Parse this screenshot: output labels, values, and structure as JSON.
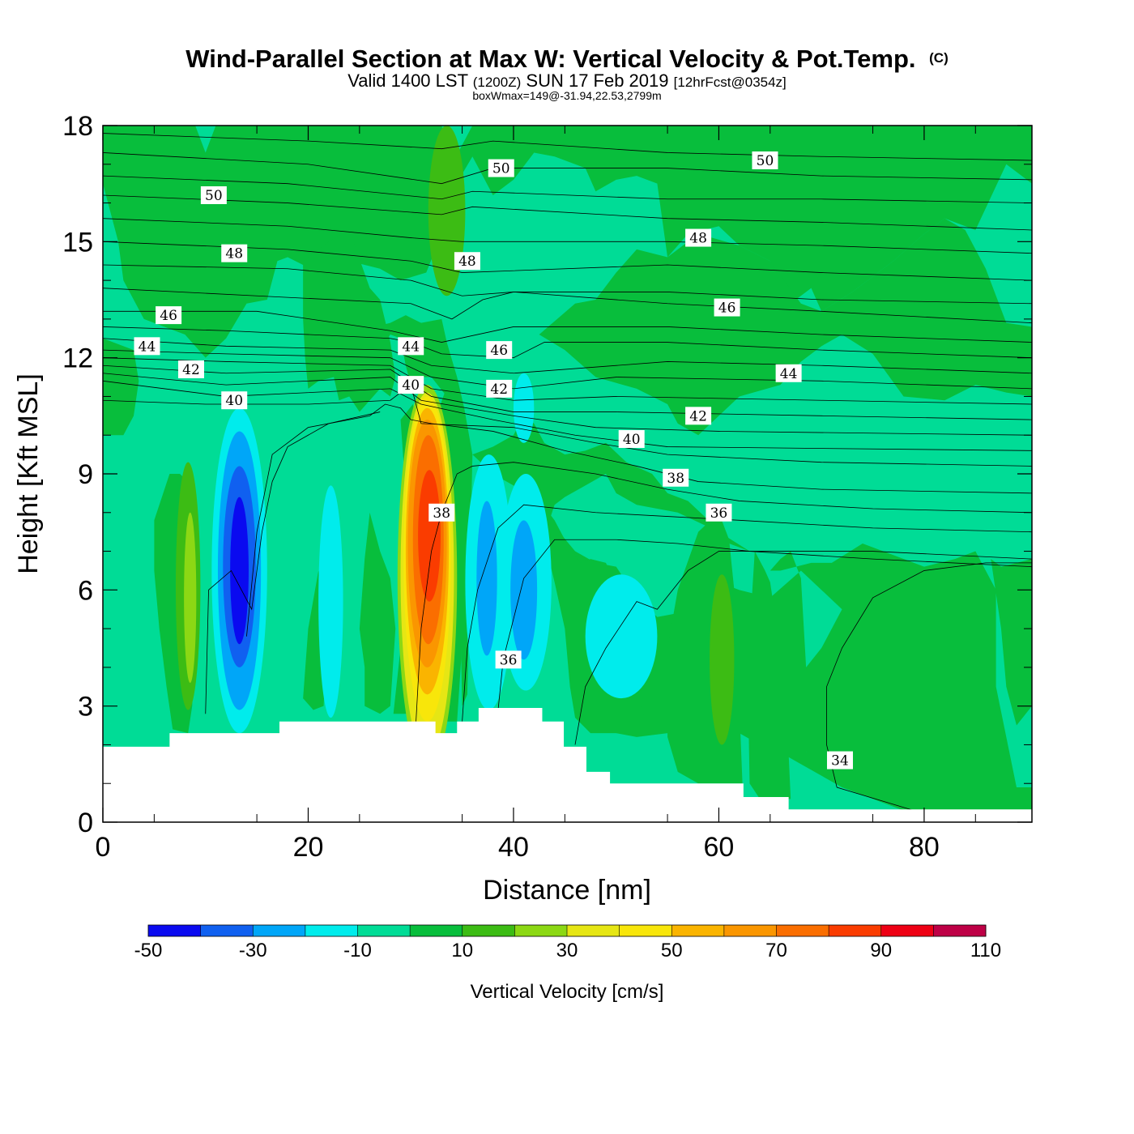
{
  "chart_data": {
    "type": "contour",
    "title": "Wind-Parallel Section at Max W: Vertical Velocity & Pot.Temp.",
    "copyright": "(C)",
    "subtitle_parts": [
      "Valid 1400 LST",
      "(1200Z)",
      "SUN 17 Feb 2019",
      "[12hrFcst@0354z]"
    ],
    "info_line": "boxWmax=149@-31.94,22.53,2799m",
    "xlabel": "Distance [nm]",
    "ylabel": "Height [Kft MSL]",
    "xlim": [
      0,
      90.5
    ],
    "ylim": [
      0,
      18
    ],
    "x_ticks": [
      0,
      20,
      40,
      60,
      80
    ],
    "y_ticks": [
      0,
      3,
      6,
      9,
      12,
      15,
      18
    ],
    "colorbar": {
      "title": "Vertical Velocity [cm/s]",
      "levels": [
        -50,
        -40,
        -30,
        -20,
        -10,
        0,
        10,
        20,
        30,
        40,
        50,
        60,
        70,
        80,
        90,
        100,
        110
      ],
      "tick_labels": [
        "-50",
        "-30",
        "-10",
        "10",
        "30",
        "50",
        "70",
        "90",
        "110"
      ],
      "colors": [
        "#0a0af0",
        "#1060f0",
        "#00a6f8",
        "#00ecec",
        "#00dc96",
        "#08be3c",
        "#3cbc14",
        "#8cd814",
        "#e6e614",
        "#f8e60a",
        "#fab400",
        "#fa9600",
        "#fa6e00",
        "#fa3c00",
        "#ee0014",
        "#be0046"
      ]
    },
    "background_band": "#00dc96",
    "wind_w_features": [
      {
        "name": "updraft-core",
        "x_nm": 31.5,
        "height_kft": 7.5,
        "w_max_cm_s": 100
      },
      {
        "name": "downdraft-core",
        "x_nm": 13.2,
        "height_kft": 6.5,
        "w_min_cm_s": -50
      },
      {
        "name": "downdraft-secondary",
        "x_nm": 37.5,
        "height_kft": 6.8,
        "w_min_cm_s": -30
      },
      {
        "name": "downdraft-tertiary",
        "x_nm": 41,
        "height_kft": 6,
        "w_min_cm_s": -30
      },
      {
        "name": "updraft-west",
        "x_nm": 8.5,
        "height_kft": 6,
        "w_max_cm_s": 30
      },
      {
        "name": "updraft-east",
        "x_nm": 60,
        "height_kft": 4,
        "w_max_cm_s": 20
      }
    ],
    "terrain_kft": [
      {
        "x": 0,
        "h": 1.95
      },
      {
        "x": 6.5,
        "h": 2.3
      },
      {
        "x": 17.2,
        "h": 2.6
      },
      {
        "x": 32.4,
        "h": 2.3
      },
      {
        "x": 34.5,
        "h": 2.6
      },
      {
        "x": 36.6,
        "h": 2.95
      },
      {
        "x": 42.8,
        "h": 2.6
      },
      {
        "x": 44.9,
        "h": 1.95
      },
      {
        "x": 47.1,
        "h": 1.3
      },
      {
        "x": 49.4,
        "h": 1.0
      },
      {
        "x": 62.4,
        "h": 0.65
      },
      {
        "x": 66.8,
        "h": 0.33
      }
    ],
    "theta_labels": [
      {
        "text": "50",
        "x": 10.8,
        "y": 16.2
      },
      {
        "text": "50",
        "x": 38.8,
        "y": 16.9
      },
      {
        "text": "50",
        "x": 64.5,
        "y": 17.1
      },
      {
        "text": "48",
        "x": 12.8,
        "y": 14.7
      },
      {
        "text": "48",
        "x": 35.5,
        "y": 14.5
      },
      {
        "text": "48",
        "x": 58.0,
        "y": 15.1
      },
      {
        "text": "46",
        "x": 6.4,
        "y": 13.1
      },
      {
        "text": "46",
        "x": 38.6,
        "y": 12.2
      },
      {
        "text": "46",
        "x": 60.8,
        "y": 13.3
      },
      {
        "text": "44",
        "x": 4.3,
        "y": 12.3
      },
      {
        "text": "44",
        "x": 30.0,
        "y": 12.3
      },
      {
        "text": "44",
        "x": 66.8,
        "y": 11.6
      },
      {
        "text": "42",
        "x": 8.6,
        "y": 11.7
      },
      {
        "text": "42",
        "x": 38.6,
        "y": 11.2
      },
      {
        "text": "42",
        "x": 58.0,
        "y": 10.5
      },
      {
        "text": "40",
        "x": 12.8,
        "y": 10.9
      },
      {
        "text": "40",
        "x": 30.0,
        "y": 11.3
      },
      {
        "text": "40",
        "x": 51.5,
        "y": 9.9
      },
      {
        "text": "38",
        "x": 33.0,
        "y": 8.0
      },
      {
        "text": "38",
        "x": 55.8,
        "y": 8.9
      },
      {
        "text": "36",
        "x": 39.5,
        "y": 4.2
      },
      {
        "text": "36",
        "x": 60.0,
        "y": 8.0
      },
      {
        "text": "34",
        "x": 71.8,
        "y": 1.6
      }
    ]
  }
}
